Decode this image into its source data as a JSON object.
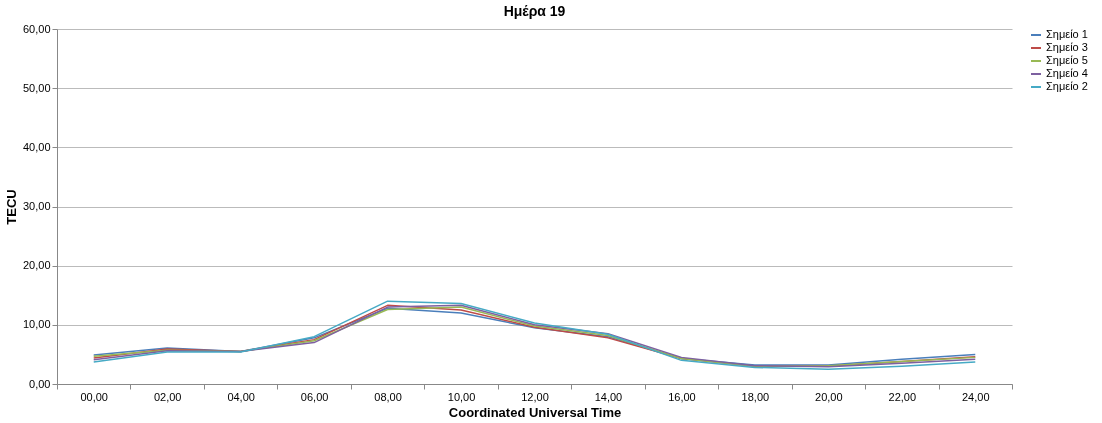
{
  "chart_data": {
    "type": "line",
    "title": "Ημέρα 19",
    "xlabel": "Coordinated Universal Time",
    "ylabel": "TECU",
    "categories": [
      "00,00",
      "02,00",
      "04,00",
      "06,00",
      "08,00",
      "10,00",
      "12,00",
      "14,00",
      "16,00",
      "18,00",
      "20,00",
      "22,00",
      "24,00"
    ],
    "series": [
      {
        "name": "Σημείο 1",
        "color": "#4a7ebb",
        "values": [
          4.9,
          6.1,
          5.5,
          7.8,
          12.8,
          12.0,
          9.5,
          8.0,
          4.3,
          3.2,
          3.2,
          4.2,
          5.0
        ]
      },
      {
        "name": "Σημείο 3",
        "color": "#be4b48",
        "values": [
          4.4,
          5.9,
          5.5,
          7.5,
          13.3,
          12.5,
          9.6,
          7.8,
          4.3,
          3.0,
          3.0,
          3.8,
          4.6
        ]
      },
      {
        "name": "Σημείο 5",
        "color": "#98b954",
        "values": [
          4.7,
          5.7,
          5.5,
          7.3,
          12.6,
          13.0,
          9.8,
          8.2,
          4.3,
          3.0,
          3.1,
          3.8,
          4.5
        ]
      },
      {
        "name": "Σημείο 4",
        "color": "#7d60a0",
        "values": [
          4.1,
          5.6,
          5.5,
          7.0,
          13.0,
          13.3,
          10.0,
          8.5,
          4.5,
          3.1,
          2.9,
          3.5,
          4.2
        ]
      },
      {
        "name": "Σημείο 2",
        "color": "#46aac5",
        "values": [
          3.7,
          5.4,
          5.4,
          8.0,
          14.0,
          13.6,
          10.3,
          8.4,
          4.0,
          2.8,
          2.5,
          3.0,
          3.7
        ]
      }
    ],
    "ylim": [
      0,
      60
    ],
    "yticks": [
      {
        "value": 0,
        "label": "0,00"
      },
      {
        "value": 10,
        "label": "10,00"
      },
      {
        "value": 20,
        "label": "20,00"
      },
      {
        "value": 30,
        "label": "30,00"
      },
      {
        "value": 40,
        "label": "40,00"
      },
      {
        "value": 50,
        "label": "50,00"
      },
      {
        "value": 60,
        "label": "60,00"
      }
    ],
    "grid": "y",
    "legend": "right"
  }
}
